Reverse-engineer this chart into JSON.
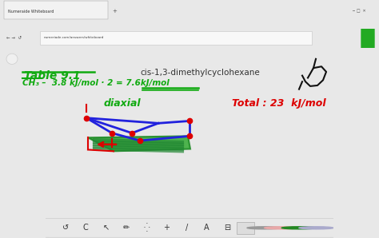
{
  "bg_color": "#e8e8e8",
  "browser_tab_color": "#d0d0d0",
  "browser_url_bar_color": "#f0f0f0",
  "whiteboard_bg": "#ffffff",
  "toolbar_bg": "#ebebeb",
  "tab_text": "Numeraide Whiteboard",
  "url_text": "numeriade.com/answers/whiteboard",
  "table_text": "Table 9.1",
  "table_color": "#11aa11",
  "formula_text": "CH₃ –  3.8 kJ/mol · 2 = 7.6kJ/mol",
  "formula_color": "#11aa11",
  "title_text": "cis-1,3-dimethylcyclohexane",
  "title_color": "#333333",
  "diaxial_text": "diaxial",
  "diaxial_color": "#11aa11",
  "total_text": "Total : 23  kJ/mol",
  "total_color": "#dd0000",
  "blue": "#2222dd",
  "red_mark": "#dd0000",
  "green_fill": "#33aa33",
  "black_sketch": "#111111",
  "toolbar_colors": [
    "#999999",
    "#e8a8a8",
    "#228822",
    "#aaaacc"
  ]
}
